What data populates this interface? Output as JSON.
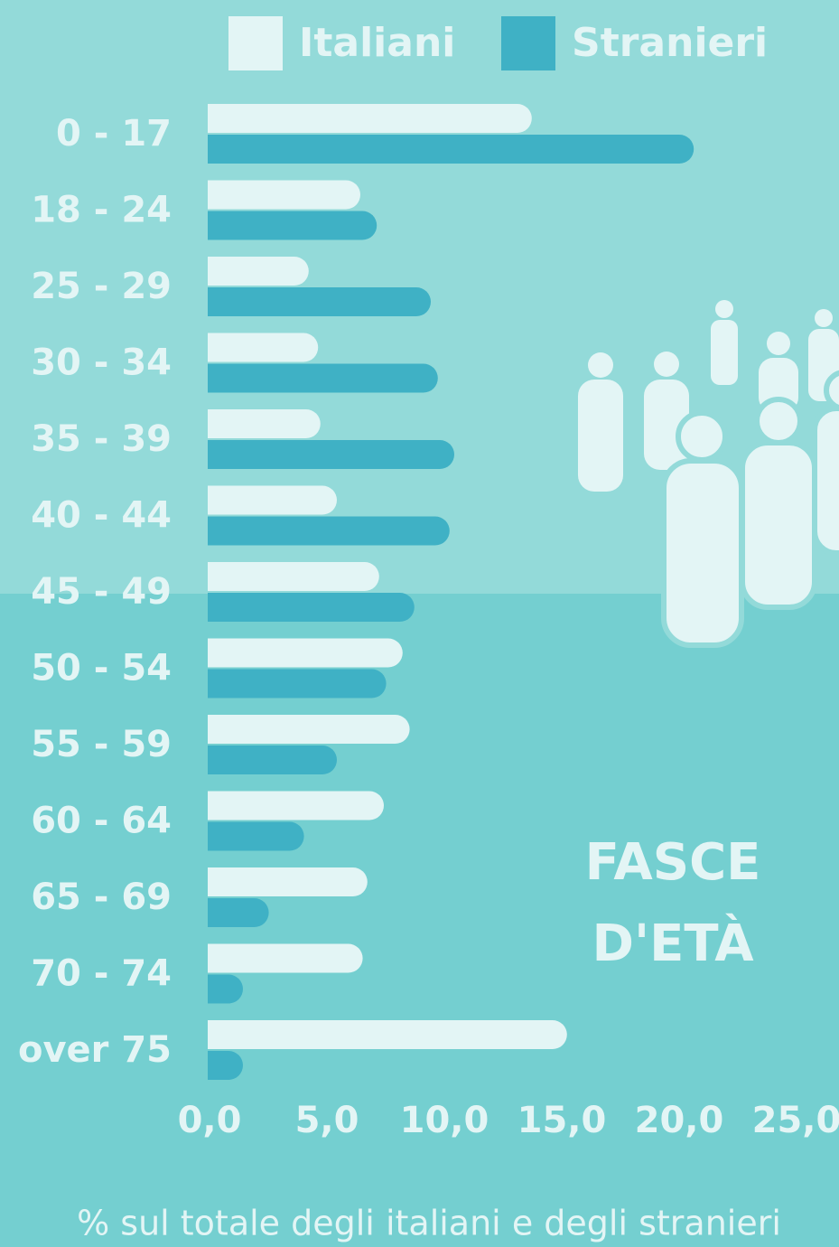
{
  "chart_data": {
    "type": "bar",
    "orientation": "horizontal",
    "annotation": "FASCE D'ETÀ",
    "x_label": "% sul totale degli italiani e degli stranieri",
    "categories": [
      "0 - 17",
      "18 - 24",
      "25 - 29",
      "30 - 34",
      "35 - 39",
      "40 - 44",
      "45 - 49",
      "50 - 54",
      "55 - 59",
      "60 - 64",
      "65 - 69",
      "70 - 74",
      "over 75"
    ],
    "series": [
      {
        "name": "Italiani",
        "color": "#e3f5f5",
        "values": [
          13.8,
          6.5,
          4.3,
          4.7,
          4.8,
          5.5,
          7.3,
          8.3,
          8.6,
          7.5,
          6.8,
          6.6,
          15.3
        ]
      },
      {
        "name": "Stranieri",
        "color": "#3fb1c5",
        "values": [
          20.7,
          7.2,
          9.5,
          9.8,
          10.5,
          10.3,
          8.8,
          7.6,
          5.5,
          4.1,
          2.6,
          1.5,
          1.5
        ]
      }
    ],
    "xlim": [
      0,
      25
    ],
    "xticks": [
      {
        "value": 0,
        "label": "0,0"
      },
      {
        "value": 5,
        "label": "5,0"
      },
      {
        "value": 10,
        "label": "10,0"
      },
      {
        "value": 15,
        "label": "15,0"
      },
      {
        "value": 20,
        "label": "20,0"
      },
      {
        "value": 25,
        "label": "25,0"
      }
    ],
    "legend": "top"
  }
}
